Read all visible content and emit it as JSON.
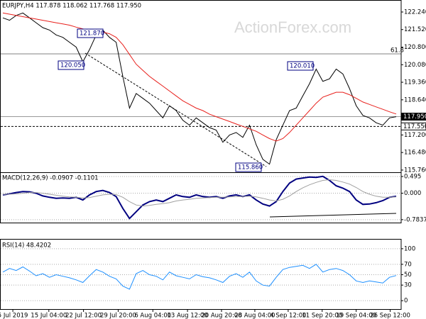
{
  "watermark": "ActionForex.com",
  "chart_data": [
    {
      "type": "line",
      "title": "EURJPY,H4  117.878 118.062 117.768 117.950",
      "xlim": [
        0,
        59
      ],
      "ylim": [
        115.67,
        122.5
      ],
      "yticks": [
        {
          "value": 122.24,
          "label": "122.240"
        },
        {
          "value": 121.52,
          "label": "121.520"
        },
        {
          "value": 120.8,
          "label": "120.800"
        },
        {
          "value": 120.08,
          "label": "120.080"
        },
        {
          "value": 119.36,
          "label": "119.360"
        },
        {
          "value": 118.64,
          "label": "118.640"
        },
        {
          "value": 117.92,
          "label": "117.920"
        },
        {
          "value": 117.2,
          "label": "117.200"
        },
        {
          "value": 116.48,
          "label": "116.480"
        },
        {
          "value": 115.76,
          "label": "115.760"
        }
      ],
      "grid": false,
      "series": [
        {
          "color": "#000000",
          "values": [
            122.0,
            121.9,
            122.1,
            122.2,
            122.0,
            121.8,
            121.6,
            121.5,
            121.3,
            121.2,
            121.0,
            120.8,
            120.2,
            120.7,
            121.3,
            121.5,
            121.2,
            121.0,
            119.6,
            118.3,
            118.9,
            118.7,
            118.5,
            118.2,
            117.9,
            118.4,
            118.2,
            117.8,
            117.6,
            117.9,
            117.7,
            117.5,
            117.4,
            116.9,
            117.2,
            117.3,
            117.1,
            117.6,
            116.8,
            116.2,
            116.0,
            117.0,
            117.6,
            118.2,
            118.3,
            118.8,
            119.3,
            119.9,
            119.4,
            119.5,
            119.9,
            119.7,
            119.1,
            118.4,
            118.0,
            117.9,
            117.7,
            117.6,
            117.9,
            117.95
          ]
        },
        {
          "color": "#e8201c",
          "values": [
            122.2,
            122.15,
            122.1,
            122.05,
            122.0,
            121.95,
            121.9,
            121.85,
            121.8,
            121.75,
            121.7,
            121.62,
            121.55,
            121.5,
            121.45,
            121.42,
            121.35,
            121.2,
            120.9,
            120.5,
            120.1,
            119.85,
            119.6,
            119.4,
            119.2,
            119.0,
            118.8,
            118.6,
            118.45,
            118.3,
            118.2,
            118.05,
            117.95,
            117.85,
            117.75,
            117.65,
            117.55,
            117.45,
            117.35,
            117.2,
            117.05,
            116.95,
            117.05,
            117.3,
            117.6,
            117.9,
            118.2,
            118.5,
            118.75,
            118.85,
            118.95,
            118.95,
            118.85,
            118.7,
            118.55,
            118.45,
            118.35,
            118.25,
            118.15,
            118.06
          ]
        }
      ],
      "annotations": [
        {
          "value": 121.87,
          "label": "121.870"
        },
        {
          "value": 120.05,
          "label": "120.050"
        },
        {
          "value": 120.01,
          "label": "120.010"
        },
        {
          "value": 115.86,
          "label": "115.860"
        }
      ],
      "levels": [
        {
          "value": 117.95,
          "label": "117.950"
        },
        {
          "value": 117.55,
          "label": "117.550"
        }
      ],
      "fib_label": "61.8"
    },
    {
      "type": "line",
      "title": "MACD(12,26,9) -0.0907 -0.1101",
      "xlim": [
        0,
        59
      ],
      "ylim": [
        -0.85,
        0.6
      ],
      "yticks": [
        0.495,
        {
          "value": 0,
          "label": "0.000"
        },
        -0.7837
      ],
      "grid": true,
      "series": [
        {
          "color": "#000080",
          "values": [
            -0.05,
            -0.02,
            0.02,
            0.05,
            0.04,
            0.0,
            -0.08,
            -0.12,
            -0.15,
            -0.14,
            -0.15,
            -0.12,
            -0.2,
            -0.05,
            0.05,
            0.08,
            0.02,
            -0.1,
            -0.45,
            -0.75,
            -0.55,
            -0.35,
            -0.25,
            -0.2,
            -0.25,
            -0.15,
            -0.05,
            -0.1,
            -0.12,
            -0.05,
            -0.1,
            -0.12,
            -0.1,
            -0.15,
            -0.08,
            -0.05,
            -0.1,
            -0.05,
            -0.2,
            -0.32,
            -0.38,
            -0.25,
            0.05,
            0.3,
            0.42,
            0.45,
            0.48,
            0.47,
            0.5,
            0.38,
            0.22,
            0.15,
            0.05,
            -0.2,
            -0.33,
            -0.32,
            -0.28,
            -0.22,
            -0.12,
            -0.0907
          ]
        },
        {
          "color": "#a0a0a0",
          "values": [
            -0.03,
            -0.03,
            -0.02,
            0.0,
            0.02,
            0.02,
            0.0,
            -0.03,
            -0.06,
            -0.09,
            -0.11,
            -0.12,
            -0.14,
            -0.13,
            -0.09,
            -0.05,
            -0.03,
            -0.04,
            -0.12,
            -0.25,
            -0.35,
            -0.38,
            -0.36,
            -0.33,
            -0.31,
            -0.28,
            -0.23,
            -0.2,
            -0.18,
            -0.15,
            -0.14,
            -0.13,
            -0.12,
            -0.12,
            -0.11,
            -0.1,
            -0.1,
            -0.09,
            -0.11,
            -0.15,
            -0.2,
            -0.23,
            -0.18,
            -0.08,
            0.05,
            0.16,
            0.25,
            0.32,
            0.38,
            0.4,
            0.38,
            0.33,
            0.27,
            0.17,
            0.05,
            -0.03,
            -0.09,
            -0.12,
            -0.12,
            -0.1101
          ]
        }
      ]
    },
    {
      "type": "line",
      "title": "RSI(14) 48.4202",
      "xlim": [
        0,
        59
      ],
      "ylim": [
        -8,
        108
      ],
      "yticks": [
        100,
        70,
        50,
        30,
        0
      ],
      "grid": true,
      "series": [
        {
          "color": "#1e90ff",
          "values": [
            55,
            62,
            58,
            65,
            57,
            48,
            52,
            45,
            50,
            47,
            44,
            40,
            35,
            48,
            60,
            55,
            47,
            42,
            28,
            22,
            52,
            58,
            50,
            47,
            40,
            55,
            48,
            45,
            42,
            50,
            46,
            44,
            40,
            35,
            47,
            52,
            45,
            55,
            38,
            30,
            28,
            45,
            60,
            64,
            66,
            68,
            62,
            70,
            55,
            60,
            62,
            58,
            50,
            38,
            35,
            38,
            36,
            34,
            45,
            48.4202
          ]
        }
      ],
      "xticks": [
        {
          "value": 1.5,
          "label": "5 Jul 2019"
        },
        {
          "value": 6.9,
          "label": "15 Jul 04:00"
        },
        {
          "value": 12.1,
          "label": "22 Jul 12:00"
        },
        {
          "value": 17.3,
          "label": "29 Jul 20:00"
        },
        {
          "value": 22.5,
          "label": "6 Aug 04:00"
        },
        {
          "value": 27.7,
          "label": "13 Aug 12:00"
        },
        {
          "value": 32.8,
          "label": "20 Aug 20:00"
        },
        {
          "value": 37.8,
          "label": "28 Aug 04:00"
        },
        {
          "value": 42.8,
          "label": "4 Sep 12:00"
        },
        {
          "value": 47.9,
          "label": "11 Sep 20:00"
        },
        {
          "value": 53.0,
          "label": "19 Sep 04:00"
        },
        {
          "value": 58.1,
          "label": "26 Sep 12:00"
        }
      ]
    }
  ]
}
